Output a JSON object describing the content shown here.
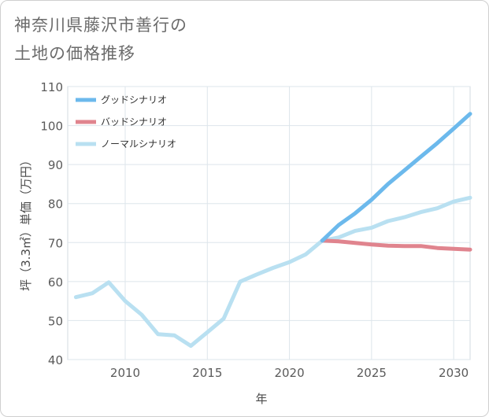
{
  "title_lines": [
    "神奈川県藤沢市善行の",
    "土地の価格推移"
  ],
  "chart_data": {
    "type": "line",
    "xlabel": "年",
    "ylabel": "坪（3.3㎡）単価（万円）",
    "xlim": [
      2006.5,
      2031
    ],
    "ylim": [
      40,
      110
    ],
    "x_ticks": [
      2010,
      2015,
      2020,
      2025,
      2030
    ],
    "y_ticks": [
      40,
      50,
      60,
      70,
      80,
      90,
      100,
      110
    ],
    "grid": true,
    "legend_position": "top-left",
    "series": [
      {
        "name": "グッドシナリオ",
        "color": "#6cb9ec",
        "x": [
          2022,
          2023,
          2024,
          2025,
          2026,
          2027,
          2028,
          2029,
          2030,
          2031
        ],
        "y": [
          70.5,
          74.5,
          77.5,
          81,
          85,
          88.5,
          92,
          95.5,
          99.2,
          103
        ]
      },
      {
        "name": "バッドシナリオ",
        "color": "#e0848e",
        "x": [
          2022,
          2023,
          2024,
          2025,
          2026,
          2027,
          2028,
          2029,
          2030,
          2031
        ],
        "y": [
          70.5,
          70.3,
          69.9,
          69.5,
          69.2,
          69.1,
          69.1,
          68.6,
          68.4,
          68.2
        ]
      },
      {
        "name": "ノーマルシナリオ",
        "color": "#b9e0f1",
        "x": [
          2007,
          2008,
          2009,
          2010,
          2011,
          2012,
          2013,
          2014,
          2015,
          2016,
          2017,
          2018,
          2019,
          2020,
          2021,
          2022,
          2023,
          2024,
          2025,
          2026,
          2027,
          2028,
          2029,
          2030,
          2031
        ],
        "y": [
          56,
          57,
          59.8,
          55,
          51.5,
          46.5,
          46.2,
          43.5,
          47,
          50.5,
          60,
          61.8,
          63.5,
          65,
          67,
          70.5,
          71.3,
          73,
          73.8,
          75.5,
          76.5,
          77.8,
          78.8,
          80.5,
          81.5
        ]
      }
    ]
  }
}
